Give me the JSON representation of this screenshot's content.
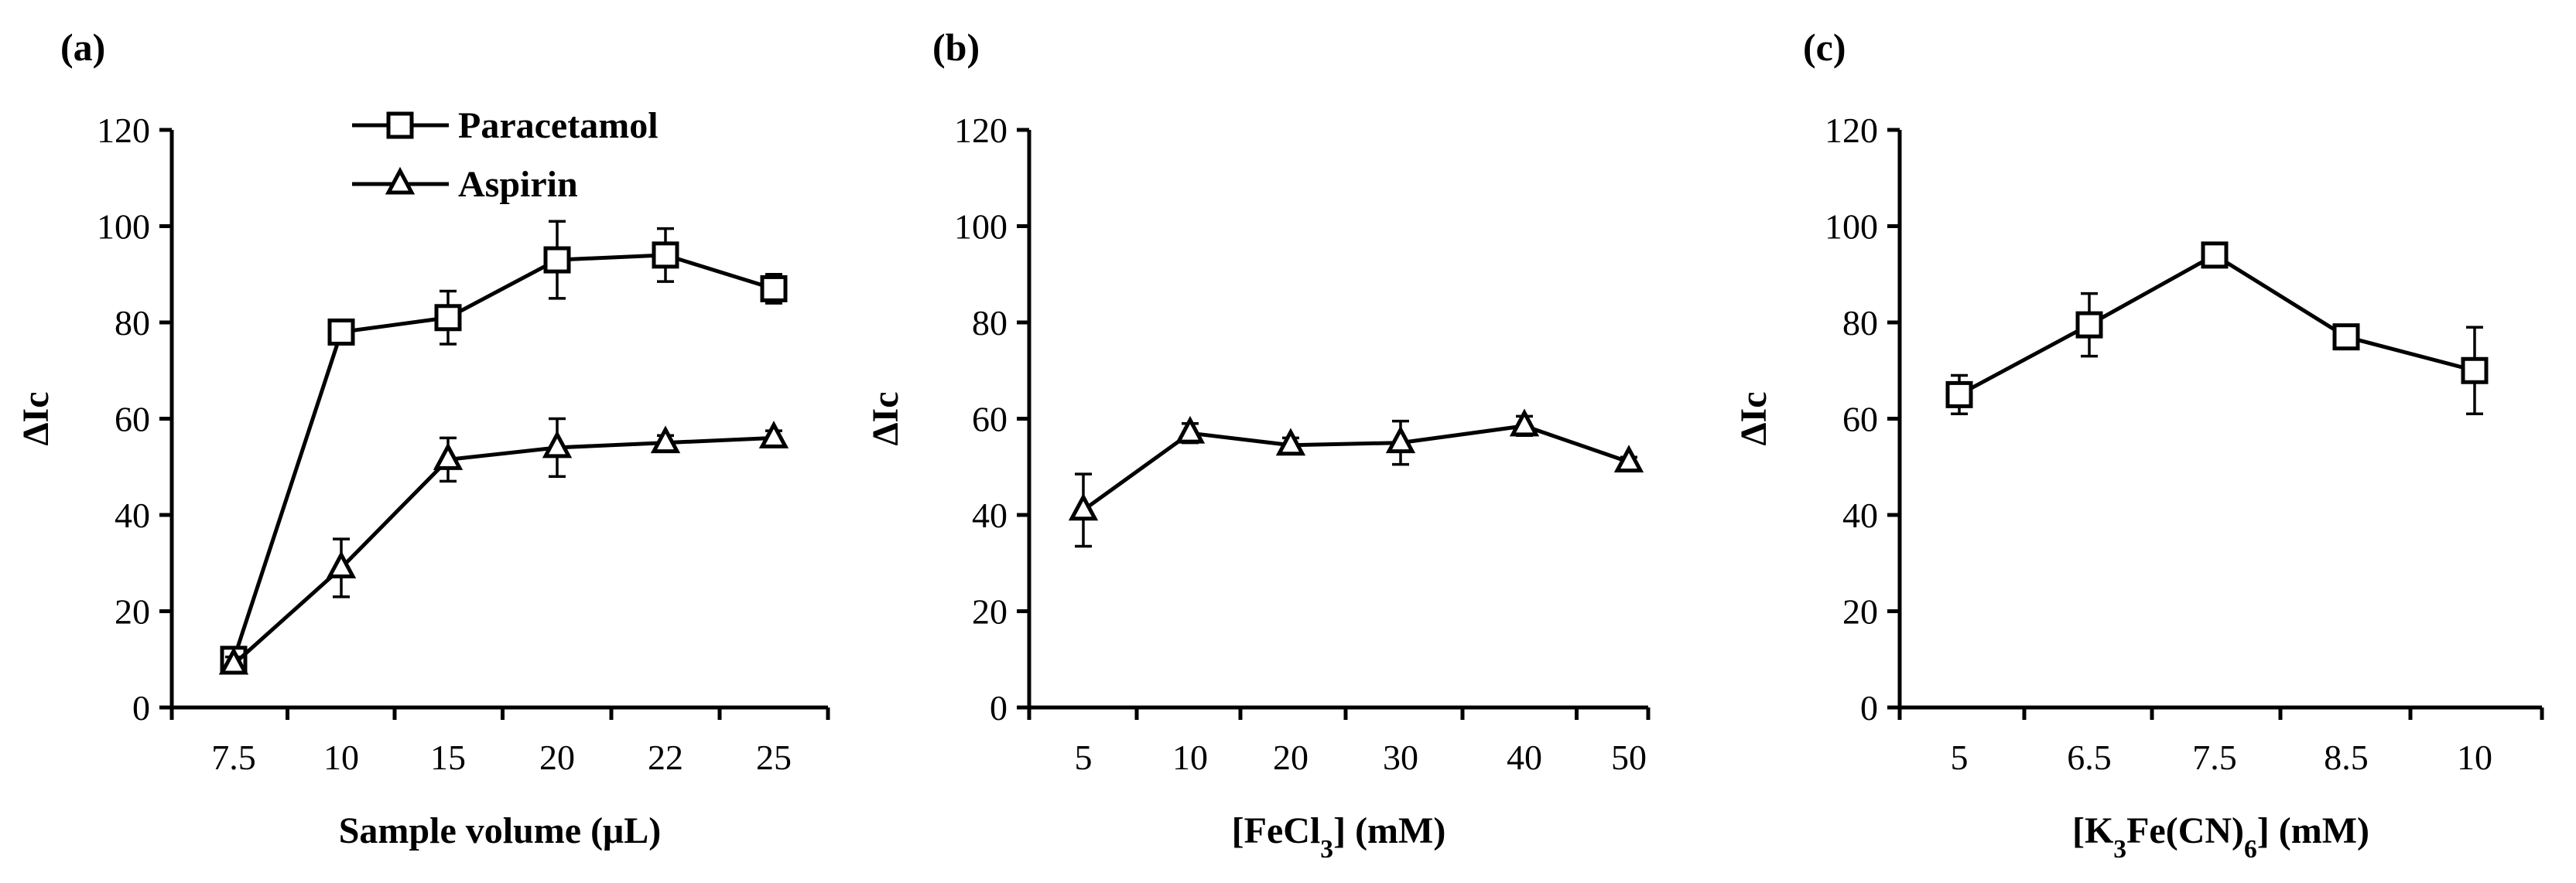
{
  "chart_data": [
    {
      "panel_label": "(a)",
      "type": "line",
      "xlabel": "Sample volume (μL)",
      "ylabel": "ΔIc",
      "categories": [
        "7.5",
        "10",
        "15",
        "20",
        "22",
        "25"
      ],
      "ylim": [
        0,
        120
      ],
      "yticks": [
        0,
        20,
        40,
        60,
        80,
        100,
        120
      ],
      "grid": false,
      "legend": "top-left",
      "series": [
        {
          "name": "Paracetamol",
          "marker": "square",
          "values": [
            10,
            78,
            81,
            93,
            94,
            87
          ],
          "errors": [
            2,
            2,
            5.5,
            8,
            5.5,
            3
          ]
        },
        {
          "name": "Aspirin",
          "marker": "triangle",
          "values": [
            9,
            29,
            51.5,
            54,
            55,
            56
          ],
          "errors": [
            1.5,
            6,
            4.5,
            6,
            1.5,
            1.5
          ]
        }
      ]
    },
    {
      "panel_label": "(b)",
      "type": "line",
      "xlabel": "[FeCl₃] (mM)",
      "ylabel": "ΔIc",
      "categories": [
        "5",
        "10",
        "20",
        "30",
        "40",
        "50"
      ],
      "ylim": [
        0,
        120
      ],
      "yticks": [
        0,
        20,
        40,
        60,
        80,
        100,
        120
      ],
      "grid": false,
      "legend": "none",
      "series": [
        {
          "marker": "triangle",
          "values": [
            41,
            57,
            54.5,
            55,
            58.5,
            51
          ],
          "errors": [
            7.5,
            2,
            1.5,
            4.5,
            2,
            1
          ]
        }
      ]
    },
    {
      "panel_label": "(c)",
      "type": "line",
      "xlabel": "[K₃Fe(CN)₆] (mM)",
      "ylabel": "ΔIc",
      "categories": [
        "5",
        "6.5",
        "7.5",
        "8.5",
        "10"
      ],
      "ylim": [
        0,
        120
      ],
      "yticks": [
        0,
        20,
        40,
        60,
        80,
        100,
        120
      ],
      "grid": false,
      "legend": "none",
      "series": [
        {
          "marker": "square",
          "values": [
            65,
            79.5,
            94,
            77,
            70
          ],
          "errors": [
            4,
            6.5,
            1,
            1,
            9
          ]
        }
      ]
    }
  ]
}
